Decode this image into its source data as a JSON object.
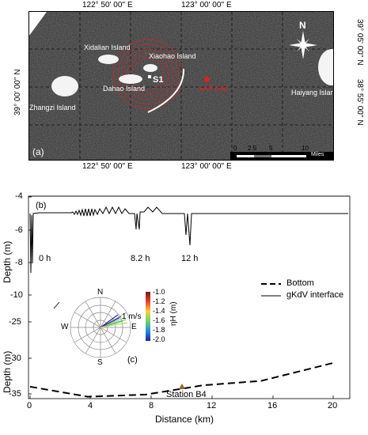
{
  "panel_a": {
    "label": "(a)",
    "top_lon_labels": [
      "122° 50' 00'' E",
      "123° 00' 00'' E"
    ],
    "bottom_lon_labels": [
      "122° 50' 00'' E",
      "123° 00' 00'' E"
    ],
    "left_lat_label": "39° 00' 00'' N",
    "right_lat_labels": [
      "39° 05' 00'' N",
      "38° 55' 00'' N"
    ],
    "places": {
      "xidalian": "Xidalian Island",
      "xiaohao": "Xiaohao Island",
      "dahao": "Dahao Island",
      "zhangzi": "Zhangzi Island",
      "haiyang": "Haiyang Island",
      "s1": "S1",
      "sar": "SAR Site"
    },
    "compass_label": "N",
    "scale": {
      "ticks": [
        "0",
        "2.5",
        "5",
        "10"
      ],
      "unit": "Miles"
    },
    "colors": {
      "circle": "#d92020",
      "sar_dot": "#e02020",
      "arc": "#ffffff"
    }
  },
  "panel_b": {
    "label": "(b)",
    "y_axis_label": "Depth (m)",
    "y_ticks": [
      "-4",
      "-6",
      "-8",
      "-10"
    ],
    "time_labels": [
      "0 h",
      "8.2 h",
      "12 h"
    ]
  },
  "panel_c": {
    "label": "(c)",
    "y_axis_label": "Depth (m)",
    "y_ticks": [
      "-25",
      "-30",
      "-35"
    ],
    "x_axis_label": "Distance (km)",
    "x_ticks": [
      "0",
      "4",
      "8",
      "12",
      "16",
      "20"
    ],
    "station_label": "Station B4",
    "legend": {
      "bottom": "Bottom",
      "gkdv": "gKdV interface"
    },
    "rose": {
      "n": "N",
      "s": "S",
      "e": "E",
      "w": "W",
      "speed": "1 m/s"
    },
    "colorbar": {
      "label": "ηH (m)",
      "ticks": [
        "-1.0",
        "-1.2",
        "-1.4",
        "-1.6",
        "-1.8",
        "-2.0"
      ],
      "colors": [
        "#7a1a14",
        "#e8412c",
        "#f7d23a",
        "#6fd36a",
        "#1f8fe0",
        "#23209a"
      ]
    }
  },
  "chart_data": {
    "type": "line",
    "xlabel": "Distance (km)",
    "ylabel": "Depth (m)",
    "xlim": [
      0,
      21
    ],
    "series": [
      {
        "name": "Bottom",
        "x": [
          0,
          4,
          8,
          12,
          16,
          21
        ],
        "y": [
          -34,
          -35.4,
          -35.1,
          -33.8,
          -33.2,
          -30.7
        ]
      }
    ]
  }
}
